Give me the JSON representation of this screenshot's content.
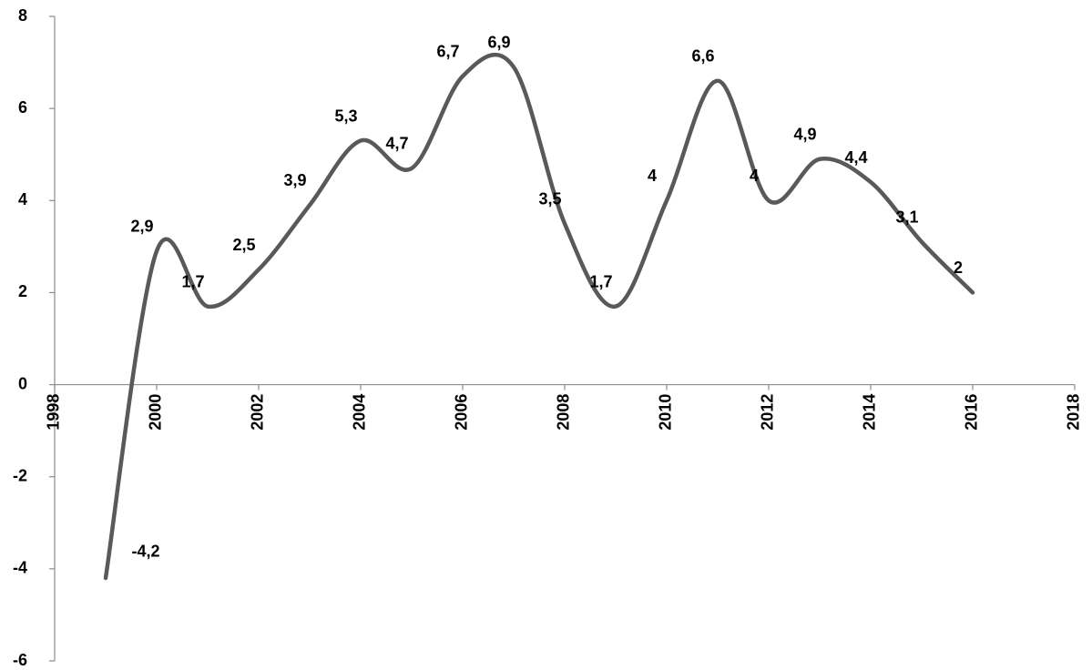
{
  "chart_data": {
    "type": "line",
    "x": [
      1999,
      2000,
      2001,
      2002,
      2003,
      2004,
      2005,
      2006,
      2007,
      2008,
      2009,
      2010,
      2011,
      2012,
      2013,
      2014,
      2015,
      2016
    ],
    "series": [
      {
        "color": "#595959",
        "values": [
          -4.2,
          2.9,
          1.7,
          2.5,
          3.9,
          5.3,
          4.7,
          6.7,
          6.9,
          3.5,
          1.7,
          4,
          6.6,
          4,
          4.9,
          4.4,
          3.1,
          2
        ],
        "value_labels": [
          "-4,2",
          "2,9",
          "1,7",
          "2,5",
          "3,9",
          "5,3",
          "4,7",
          "6,7",
          "6,9",
          "3,5",
          "1,7",
          "4",
          "6,6",
          "4",
          "4,9",
          "4,4",
          "3,1",
          "2"
        ]
      }
    ],
    "xlim": [
      1998,
      2018
    ],
    "xticks": [
      1998,
      2000,
      2002,
      2004,
      2006,
      2008,
      2010,
      2012,
      2014,
      2016,
      2018
    ],
    "ylim": [
      -6,
      8
    ],
    "yticks": [
      8,
      6,
      4,
      2,
      0,
      -2,
      -4,
      -6
    ],
    "smooth": true
  }
}
